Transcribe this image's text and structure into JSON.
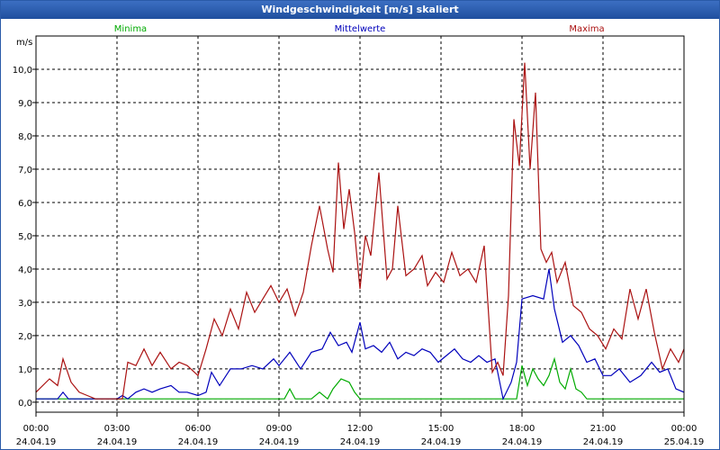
{
  "chart_data": {
    "type": "line",
    "title": "Windgeschwindigkeit [m/s] skaliert",
    "ylabel": "m/s",
    "ylim": [
      -0.3,
      11.0
    ],
    "xlim": [
      0,
      24
    ],
    "grid": true,
    "y_ticks": [
      "0,0",
      "1,0",
      "2,0",
      "3,0",
      "4,0",
      "5,0",
      "6,0",
      "7,0",
      "8,0",
      "9,0",
      "10,0"
    ],
    "x_ticks": [
      {
        "time": "00:00",
        "date": "24.04.19"
      },
      {
        "time": "03:00",
        "date": "24.04.19"
      },
      {
        "time": "06:00",
        "date": "24.04.19"
      },
      {
        "time": "09:00",
        "date": "24.04.19"
      },
      {
        "time": "12:00",
        "date": "24.04.19"
      },
      {
        "time": "15:00",
        "date": "24.04.19"
      },
      {
        "time": "18:00",
        "date": "24.04.19"
      },
      {
        "time": "21:00",
        "date": "24.04.19"
      },
      {
        "time": "00:00",
        "date": "25.04.19"
      }
    ],
    "colors": {
      "Minima": "#00aa00",
      "Mittelwerte": "#0000bb",
      "Maxima": "#aa1111"
    },
    "series": [
      {
        "name": "Minima",
        "x": [
          0,
          3.5,
          9.2,
          9.4,
          9.6,
          10.2,
          10.5,
          10.8,
          11.0,
          11.3,
          11.6,
          11.8,
          12.0,
          12.2,
          17.3,
          17.8,
          18.0,
          18.2,
          18.4,
          18.6,
          18.8,
          19.0,
          19.2,
          19.4,
          19.6,
          19.8,
          20.0,
          20.2,
          20.4,
          24
        ],
        "y": [
          0.1,
          0.1,
          0.1,
          0.4,
          0.1,
          0.1,
          0.3,
          0.1,
          0.4,
          0.7,
          0.6,
          0.3,
          0.1,
          0.1,
          0.1,
          0.1,
          1.1,
          0.5,
          1.0,
          0.7,
          0.5,
          0.8,
          1.3,
          0.6,
          0.4,
          1.0,
          0.4,
          0.3,
          0.1,
          0.1
        ]
      },
      {
        "name": "Mittelwerte",
        "x": [
          0,
          0.8,
          1.0,
          1.2,
          1.6,
          2.0,
          2.5,
          3.0,
          3.2,
          3.4,
          3.7,
          4.0,
          4.3,
          4.6,
          5.0,
          5.3,
          5.6,
          6.0,
          6.3,
          6.5,
          6.8,
          7.2,
          7.6,
          8.0,
          8.4,
          8.8,
          9.0,
          9.4,
          9.8,
          10.2,
          10.6,
          10.9,
          11.2,
          11.5,
          11.7,
          12.0,
          12.2,
          12.5,
          12.8,
          13.1,
          13.4,
          13.7,
          14.0,
          14.3,
          14.6,
          14.9,
          15.2,
          15.5,
          15.8,
          16.1,
          16.4,
          16.7,
          17.0,
          17.3,
          17.6,
          17.8,
          18.0,
          18.4,
          18.8,
          19.0,
          19.2,
          19.5,
          19.8,
          20.1,
          20.4,
          20.7,
          21.0,
          21.3,
          21.6,
          22.0,
          22.4,
          22.8,
          23.1,
          23.4,
          23.7,
          24
        ],
        "y": [
          0.1,
          0.1,
          0.3,
          0.1,
          0.1,
          0.1,
          0.1,
          0.1,
          0.2,
          0.1,
          0.3,
          0.4,
          0.3,
          0.4,
          0.5,
          0.3,
          0.3,
          0.2,
          0.3,
          0.9,
          0.5,
          1.0,
          1.0,
          1.1,
          1.0,
          1.3,
          1.1,
          1.5,
          1.0,
          1.5,
          1.6,
          2.1,
          1.7,
          1.8,
          1.5,
          2.4,
          1.6,
          1.7,
          1.5,
          1.8,
          1.3,
          1.5,
          1.4,
          1.6,
          1.5,
          1.2,
          1.4,
          1.6,
          1.3,
          1.2,
          1.4,
          1.2,
          1.3,
          0.1,
          0.6,
          1.2,
          3.1,
          3.2,
          3.1,
          4.0,
          2.8,
          1.8,
          2.0,
          1.7,
          1.2,
          1.3,
          0.8,
          0.8,
          1.0,
          0.6,
          0.8,
          1.2,
          0.9,
          1.0,
          0.4,
          0.3
        ]
      },
      {
        "name": "Maxima",
        "x": [
          0,
          0.5,
          0.8,
          1.0,
          1.3,
          1.6,
          1.9,
          2.2,
          2.6,
          3.0,
          3.2,
          3.4,
          3.7,
          4.0,
          4.3,
          4.6,
          5.0,
          5.3,
          5.6,
          6.0,
          6.3,
          6.6,
          6.9,
          7.2,
          7.5,
          7.8,
          8.1,
          8.4,
          8.7,
          9.0,
          9.3,
          9.6,
          9.9,
          10.2,
          10.5,
          10.8,
          11.0,
          11.2,
          11.4,
          11.6,
          11.8,
          12.0,
          12.2,
          12.4,
          12.7,
          13.0,
          13.2,
          13.4,
          13.7,
          14.0,
          14.3,
          14.5,
          14.8,
          15.1,
          15.4,
          15.7,
          16.0,
          16.3,
          16.6,
          16.9,
          17.1,
          17.3,
          17.5,
          17.7,
          17.9,
          18.1,
          18.3,
          18.5,
          18.7,
          18.9,
          19.1,
          19.3,
          19.6,
          19.9,
          20.2,
          20.5,
          20.8,
          21.1,
          21.4,
          21.7,
          22.0,
          22.3,
          22.6,
          22.9,
          23.2,
          23.5,
          23.8,
          24
        ],
        "y": [
          0.3,
          0.7,
          0.5,
          1.3,
          0.6,
          0.3,
          0.2,
          0.1,
          0.1,
          0.1,
          0.1,
          1.2,
          1.1,
          1.6,
          1.1,
          1.5,
          1.0,
          1.2,
          1.1,
          0.8,
          1.6,
          2.5,
          2.0,
          2.8,
          2.2,
          3.3,
          2.7,
          3.1,
          3.5,
          3.0,
          3.4,
          2.6,
          3.3,
          4.7,
          5.9,
          4.6,
          3.9,
          7.2,
          5.2,
          6.4,
          5.1,
          3.4,
          5.0,
          4.4,
          6.9,
          3.7,
          4.0,
          5.9,
          3.8,
          4.0,
          4.4,
          3.5,
          3.9,
          3.6,
          4.5,
          3.8,
          4.0,
          3.6,
          4.7,
          0.9,
          1.2,
          0.8,
          3.2,
          8.5,
          7.1,
          10.2,
          7.0,
          9.3,
          4.6,
          4.2,
          4.5,
          3.6,
          4.2,
          2.9,
          2.7,
          2.2,
          2.0,
          1.6,
          2.2,
          1.9,
          3.4,
          2.5,
          3.4,
          2.1,
          1.0,
          1.6,
          1.2,
          1.6
        ]
      }
    ]
  }
}
